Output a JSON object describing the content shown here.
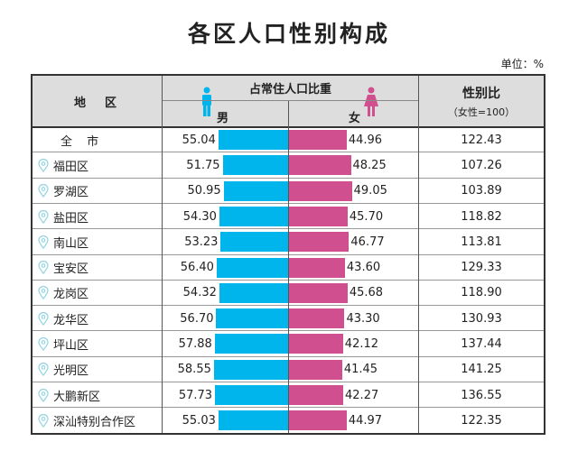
{
  "chart_data": {
    "type": "table",
    "title": "各区人口性别构成",
    "unit": "单位：%",
    "headers": {
      "region": "地　区",
      "share": "占常住人口比重",
      "male": "男",
      "female": "女",
      "ratio": "性别比",
      "ratio_note": "（女性=100）"
    },
    "colors": {
      "male": "#00b4ec",
      "female": "#d04f8f"
    },
    "rows": [
      {
        "region": "全 市",
        "male": "55.04",
        "female": "44.96",
        "ratio": "122.43",
        "pin": false
      },
      {
        "region": "福田区",
        "male": "51.75",
        "female": "48.25",
        "ratio": "107.26",
        "pin": true
      },
      {
        "region": "罗湖区",
        "male": "50.95",
        "female": "49.05",
        "ratio": "103.89",
        "pin": true
      },
      {
        "region": "盐田区",
        "male": "54.30",
        "female": "45.70",
        "ratio": "118.82",
        "pin": true
      },
      {
        "region": "南山区",
        "male": "53.23",
        "female": "46.77",
        "ratio": "113.81",
        "pin": true
      },
      {
        "region": "宝安区",
        "male": "56.40",
        "female": "43.60",
        "ratio": "129.33",
        "pin": true
      },
      {
        "region": "龙岗区",
        "male": "54.32",
        "female": "45.68",
        "ratio": "118.90",
        "pin": true
      },
      {
        "region": "龙华区",
        "male": "56.70",
        "female": "43.30",
        "ratio": "130.93",
        "pin": true
      },
      {
        "region": "坪山区",
        "male": "57.88",
        "female": "42.12",
        "ratio": "137.44",
        "pin": true
      },
      {
        "region": "光明区",
        "male": "58.55",
        "female": "41.45",
        "ratio": "141.25",
        "pin": true
      },
      {
        "region": "大鹏新区",
        "male": "57.73",
        "female": "42.27",
        "ratio": "136.55",
        "pin": true
      },
      {
        "region": "深汕特别合作区",
        "male": "55.03",
        "female": "44.97",
        "ratio": "122.35",
        "pin": true
      }
    ]
  }
}
